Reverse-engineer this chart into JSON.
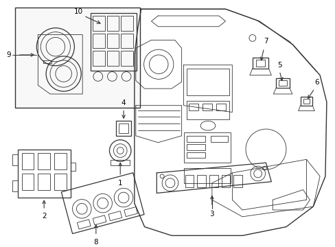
{
  "bg": "#ffffff",
  "lc": "#333333",
  "lc2": "#555555",
  "fig_w": 4.89,
  "fig_h": 3.6,
  "dpi": 100
}
